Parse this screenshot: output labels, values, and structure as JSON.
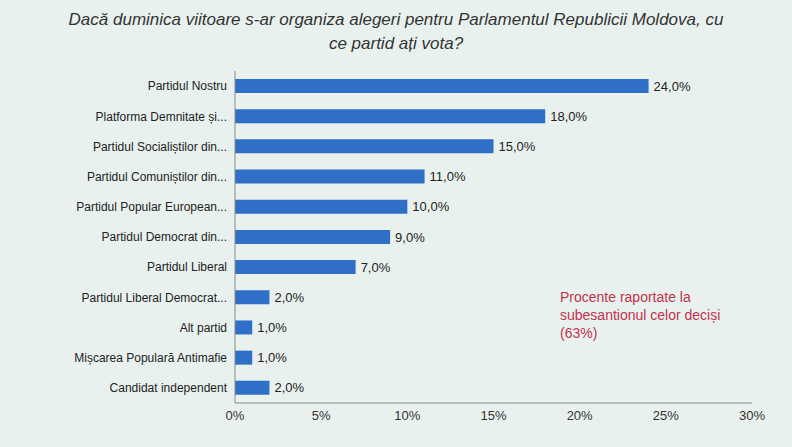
{
  "chart_data": {
    "type": "bar",
    "orientation": "horizontal",
    "title": "Dacă duminica viitoare s-ar organiza alegeri pentru Parlamentul Republicii Moldova, cu ce partid ați vota?",
    "categories": [
      "Partidul Nostru",
      "Platforma Demnitate și...",
      "Partidul Socialiștilor din...",
      "Partidul Comuniștilor din...",
      "Partidul Popular European...",
      "Partidul Democrat din...",
      "Partidul Liberal",
      "Partidul Liberal Democrat...",
      "Alt partid",
      "Mișcarea Populară Antimafie",
      "Candidat independent"
    ],
    "values": [
      24,
      18,
      15,
      11,
      10,
      9,
      7,
      2,
      1,
      1,
      2
    ],
    "value_labels": [
      "24,0%",
      "18,0%",
      "15,0%",
      "11,0%",
      "10,0%",
      "9,0%",
      "7,0%",
      "2,0%",
      "1,0%",
      "1,0%",
      "2,0%"
    ],
    "data_labels": true,
    "color": "#2f6fc7",
    "xlim": [
      0,
      30
    ],
    "xticks": [
      {
        "value": 0,
        "label": "0%"
      },
      {
        "value": 5,
        "label": "5%"
      },
      {
        "value": 10,
        "label": "10%"
      },
      {
        "value": 15,
        "label": "15%"
      },
      {
        "value": 20,
        "label": "20%"
      },
      {
        "value": 25,
        "label": "25%"
      },
      {
        "value": 30,
        "label": "30%"
      }
    ],
    "grid": false,
    "annotations": [
      "Procente raportate la subesantionul celor deciși (63%)"
    ]
  }
}
